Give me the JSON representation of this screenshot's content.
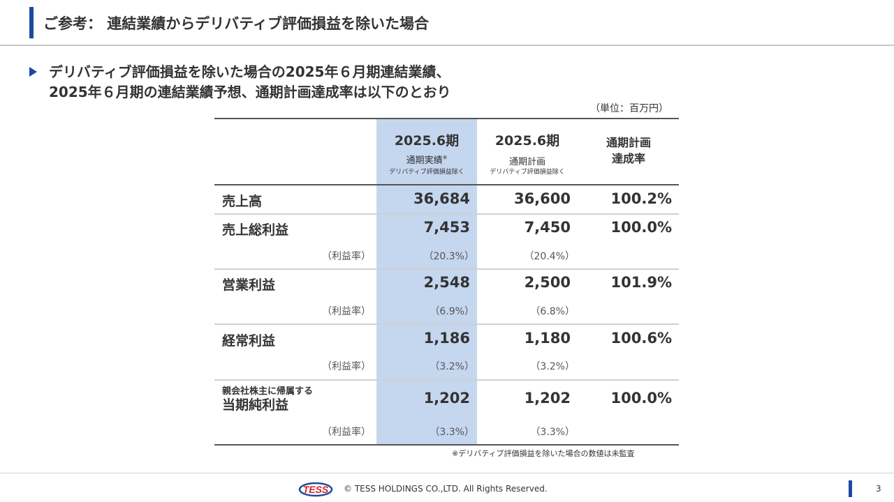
{
  "header": {
    "title": "ご参考： 連結業績からデリバティブ評価損益を除いた場合"
  },
  "lead": {
    "line1": "デリバティブ評価損益を除いた場合の2025年６月期連結業績、",
    "line2": "2025年６月期の連結業績予想、通期計画達成率は以下のとおり"
  },
  "unit": "（単位：百万円）",
  "table": {
    "columns": [
      {
        "main": "2025.6期",
        "sub": "通期実績",
        "mark": "※",
        "sub2": "デリバティブ評価損益除く"
      },
      {
        "main": "2025.6期",
        "sub": "通期計画",
        "mark": "",
        "sub2": "デリバティブ評価損益除く"
      },
      {
        "line1": "通期計画",
        "line2": "達成率"
      }
    ],
    "ratio_label": "（利益率）",
    "rows": [
      {
        "label": "売上高",
        "actual": "36,684",
        "plan": "36,600",
        "rate": "100.2%"
      },
      {
        "label": "売上総利益",
        "actual": "7,453",
        "plan": "7,450",
        "rate": "100.0%",
        "actual_ratio": "（20.3%）",
        "plan_ratio": "（20.4%）"
      },
      {
        "label": "営業利益",
        "actual": "2,548",
        "plan": "2,500",
        "rate": "101.9%",
        "actual_ratio": "（6.9%）",
        "plan_ratio": "（6.8%）"
      },
      {
        "label": "経常利益",
        "actual": "1,186",
        "plan": "1,180",
        "rate": "100.6%",
        "actual_ratio": "（3.2%）",
        "plan_ratio": "（3.2%）"
      },
      {
        "label_small": "親会社株主に帰属する",
        "label": "当期純利益",
        "actual": "1,202",
        "plan": "1,202",
        "rate": "100.0%",
        "actual_ratio": "（3.3%）",
        "plan_ratio": "（3.3%）"
      }
    ]
  },
  "note": "※デリバティブ評価損益を除いた場合の数値は未監査",
  "footer": {
    "logo_text": "TESS",
    "copyright": "© TESS HOLDINGS CO.,LTD. All Rights Reserved.",
    "page": "3"
  },
  "colors": {
    "accent": "#1a4aa0",
    "highlight": "#c5d6ef"
  }
}
